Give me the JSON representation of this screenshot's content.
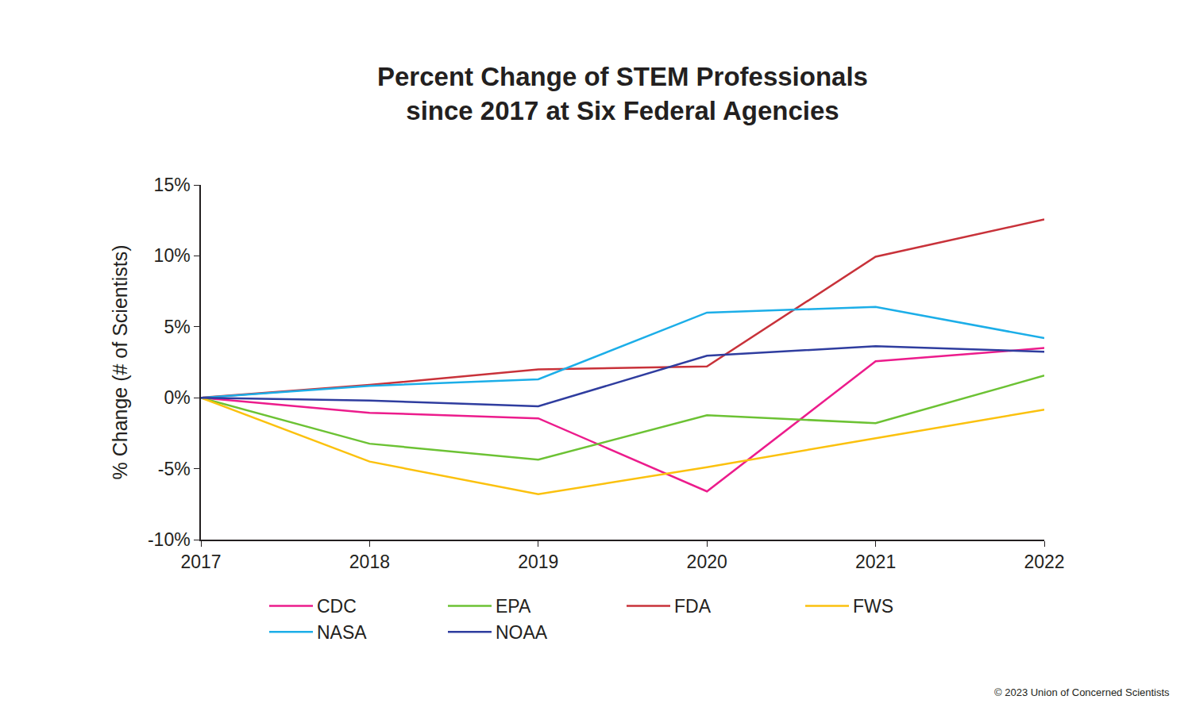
{
  "chart_data": {
    "type": "line",
    "title": "Percent Change of STEM Professionals\nsince 2017 at Six Federal Agencies",
    "y_label": "% Change (# of Scientists)",
    "annotations": [
      "© 2023 Union of Concerned Scientists"
    ],
    "x": [
      2017,
      2018,
      2019,
      2020,
      2021,
      2022
    ],
    "xlim": [
      2017,
      2022
    ],
    "xticks": [
      2017,
      2018,
      2019,
      2020,
      2021,
      2022
    ],
    "ylim": [
      -10,
      15
    ],
    "yticks": [
      {
        "value": -10,
        "label": "-10%"
      },
      {
        "value": -5,
        "label": "-5%"
      },
      {
        "value": 0,
        "label": "0%"
      },
      {
        "value": 5,
        "label": "5%"
      },
      {
        "value": 10,
        "label": "10%"
      },
      {
        "value": 15,
        "label": "15%"
      }
    ],
    "grid": false,
    "legend": "bottom",
    "line_style": "solid",
    "series": [
      {
        "name": "CDC",
        "color": "#ec1c8c",
        "values": [
          0,
          -1.06,
          -1.45,
          -6.6,
          2.57,
          3.5
        ]
      },
      {
        "name": "EPA",
        "color": "#6cc234",
        "values": [
          0,
          -3.24,
          -4.36,
          -1.23,
          -1.79,
          1.56
        ]
      },
      {
        "name": "FDA",
        "color": "#c8323a",
        "values": [
          0,
          0.9,
          2.0,
          2.2,
          9.94,
          12.57
        ]
      },
      {
        "name": "FWS",
        "color": "#fbc10e",
        "values": [
          0,
          -4.5,
          -6.8,
          -4.9,
          -2.85,
          -0.84
        ]
      },
      {
        "name": "NASA",
        "color": "#1caee8",
        "values": [
          0,
          0.84,
          1.3,
          6.0,
          6.4,
          4.2
        ]
      },
      {
        "name": "NOAA",
        "color": "#2f3d9f",
        "values": [
          0,
          -0.2,
          -0.6,
          2.96,
          3.63,
          3.24
        ]
      }
    ]
  }
}
